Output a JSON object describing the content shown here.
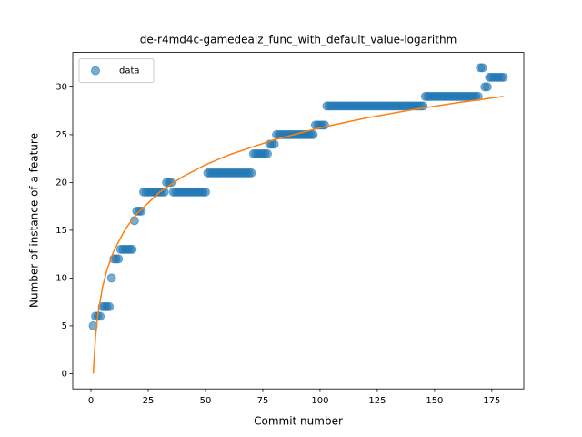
{
  "chart_data": {
    "type": "scatter",
    "title": "de-r4md4c-gamedealz_func_with_default_value-logarithm",
    "xlabel": "Commit number",
    "ylabel": "Number of instance of a feature",
    "xlim": [
      -7.95,
      188.95
    ],
    "ylim": [
      -1.6,
      33.6
    ],
    "xticks": [
      0,
      25,
      50,
      75,
      100,
      125,
      150,
      175
    ],
    "yticks": [
      0,
      5,
      10,
      15,
      20,
      25,
      30
    ],
    "legend": "upper left",
    "series": [
      {
        "name": "data",
        "type": "scatter",
        "color": "#1f77b4",
        "x": [
          1,
          2,
          3,
          4,
          5,
          6,
          7,
          8,
          9,
          10,
          11,
          12,
          13,
          14,
          15,
          16,
          17,
          18,
          19,
          20,
          21,
          22,
          23,
          24,
          25,
          26,
          27,
          28,
          29,
          30,
          31,
          32,
          33,
          34,
          35,
          36,
          37,
          38,
          39,
          40,
          41,
          42,
          43,
          44,
          45,
          46,
          47,
          48,
          49,
          50,
          51,
          52,
          53,
          54,
          55,
          56,
          57,
          58,
          59,
          60,
          61,
          62,
          63,
          64,
          65,
          66,
          67,
          68,
          69,
          70,
          71,
          72,
          73,
          74,
          75,
          76,
          77,
          78,
          79,
          80,
          81,
          82,
          83,
          84,
          85,
          86,
          87,
          88,
          89,
          90,
          91,
          92,
          93,
          94,
          95,
          96,
          97,
          98,
          99,
          100,
          101,
          102,
          103,
          104,
          105,
          106,
          107,
          108,
          109,
          110,
          111,
          112,
          113,
          114,
          115,
          116,
          117,
          118,
          119,
          120,
          121,
          122,
          123,
          124,
          125,
          126,
          127,
          128,
          129,
          130,
          131,
          132,
          133,
          134,
          135,
          136,
          137,
          138,
          139,
          140,
          141,
          142,
          143,
          144,
          145,
          146,
          147,
          148,
          149,
          150,
          151,
          152,
          153,
          154,
          155,
          156,
          157,
          158,
          159,
          160,
          161,
          162,
          163,
          164,
          165,
          166,
          167,
          168,
          169,
          170,
          171,
          172,
          173,
          174,
          175,
          176,
          177,
          178,
          179,
          180
        ],
        "values": [
          5,
          6,
          6,
          6,
          7,
          7,
          7,
          7,
          10,
          12,
          12,
          12,
          13,
          13,
          13,
          13,
          13,
          13,
          16,
          17,
          17,
          17,
          19,
          19,
          19,
          19,
          19,
          19,
          19,
          19,
          19,
          19,
          20,
          20,
          20,
          19,
          19,
          19,
          19,
          19,
          19,
          19,
          19,
          19,
          19,
          19,
          19,
          19,
          19,
          19,
          21,
          21,
          21,
          21,
          21,
          21,
          21,
          21,
          21,
          21,
          21,
          21,
          21,
          21,
          21,
          21,
          21,
          21,
          21,
          21,
          23,
          23,
          23,
          23,
          23,
          23,
          23,
          24,
          24,
          24,
          25,
          25,
          25,
          25,
          25,
          25,
          25,
          25,
          25,
          25,
          25,
          25,
          25,
          25,
          25,
          25,
          25,
          26,
          26,
          26,
          26,
          26,
          28,
          28,
          28,
          28,
          28,
          28,
          28,
          28,
          28,
          28,
          28,
          28,
          28,
          28,
          28,
          28,
          28,
          28,
          28,
          28,
          28,
          28,
          28,
          28,
          28,
          28,
          28,
          28,
          28,
          28,
          28,
          28,
          28,
          28,
          28,
          28,
          28,
          28,
          28,
          28,
          28,
          28,
          28,
          29,
          29,
          29,
          29,
          29,
          29,
          29,
          29,
          29,
          29,
          29,
          29,
          29,
          29,
          29,
          29,
          29,
          29,
          29,
          29,
          29,
          29,
          29,
          29,
          32,
          32,
          30,
          30,
          31,
          31,
          31,
          31,
          31,
          31,
          31
        ]
      },
      {
        "type": "line",
        "color": "#ff7f0e",
        "x": [
          1,
          2,
          3,
          5,
          7,
          10,
          15,
          20,
          30,
          40,
          50,
          60,
          80,
          100,
          120,
          140,
          160,
          180
        ],
        "values": [
          0,
          3.87,
          6.14,
          8.99,
          10.87,
          12.86,
          15.12,
          16.73,
          19.0,
          20.6,
          21.85,
          22.87,
          24.47,
          25.72,
          26.74,
          27.6,
          28.35,
          29.0
        ]
      }
    ]
  }
}
